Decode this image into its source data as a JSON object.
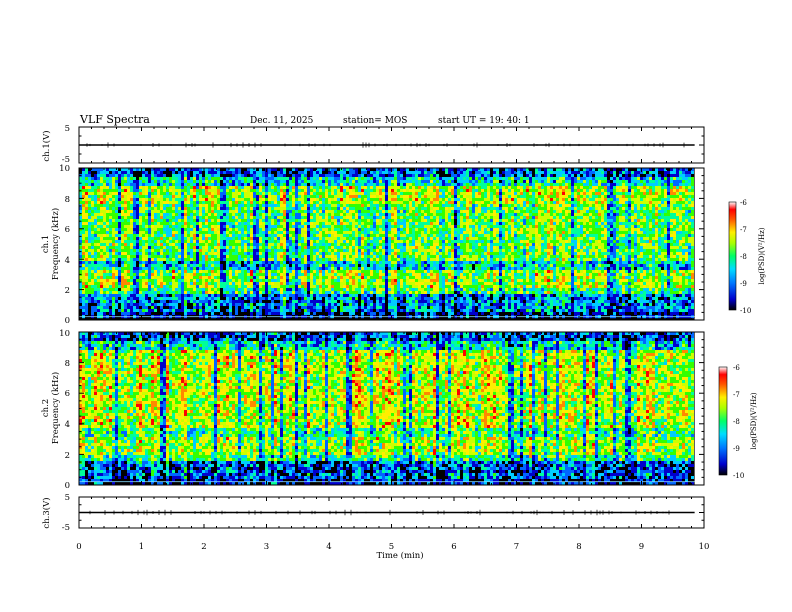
{
  "header": {
    "title": "VLF Spectra",
    "date": "Dec. 11, 2025",
    "station": "station= MOS",
    "start": "start UT =   19: 40: 1"
  },
  "chart_data": {
    "type": "heatmap",
    "x": {
      "label": "Time (min)",
      "range": [
        0,
        10
      ],
      "ticks": [
        "0",
        "1",
        "2",
        "3",
        "4",
        "5",
        "6",
        "7",
        "8",
        "9",
        "10"
      ],
      "data_end": 9.85
    },
    "panels": [
      {
        "id": "ch1-waveform",
        "kind": "line",
        "ylabel": "ch.1(V)",
        "yrange": [
          -5,
          5
        ],
        "yticks": [
          "5",
          "-5"
        ],
        "baseline": 0
      },
      {
        "id": "ch1-spectrogram",
        "kind": "heatmap",
        "ylabel_top": "ch.1",
        "ylabel": "Frequency (kHz)",
        "yrange": [
          0,
          10
        ],
        "yticks": [
          "0",
          "2",
          "4",
          "6",
          "8",
          "10"
        ],
        "colorbar": {
          "label": "log(PSD)(V²/Hz)",
          "range": [
            -10,
            -6
          ],
          "ticks": [
            "-6",
            "-7",
            "-8",
            "-9",
            "-10"
          ]
        }
      },
      {
        "id": "ch2-spectrogram",
        "kind": "heatmap",
        "ylabel_top": "ch.2",
        "ylabel": "Frequency (kHz)",
        "yrange": [
          0,
          10
        ],
        "yticks": [
          "0",
          "2",
          "4",
          "6",
          "8",
          "10"
        ],
        "colorbar": {
          "label": "log(PSD)(V²/Hz)",
          "range": [
            -10,
            -6
          ],
          "ticks": [
            "-6",
            "-7",
            "-8",
            "-9",
            "-10"
          ]
        }
      },
      {
        "id": "ch3-waveform",
        "kind": "line",
        "ylabel": "ch.3(V)",
        "yrange": [
          -5,
          5
        ],
        "yticks": [
          "5",
          "-5"
        ],
        "baseline": 0
      }
    ],
    "colormap": [
      "#000000",
      "#0000cc",
      "#0066ff",
      "#00ccff",
      "#00ff99",
      "#33ff00",
      "#ccff00",
      "#ffee00",
      "#ff8800",
      "#ff0000",
      "#ffffff"
    ]
  }
}
